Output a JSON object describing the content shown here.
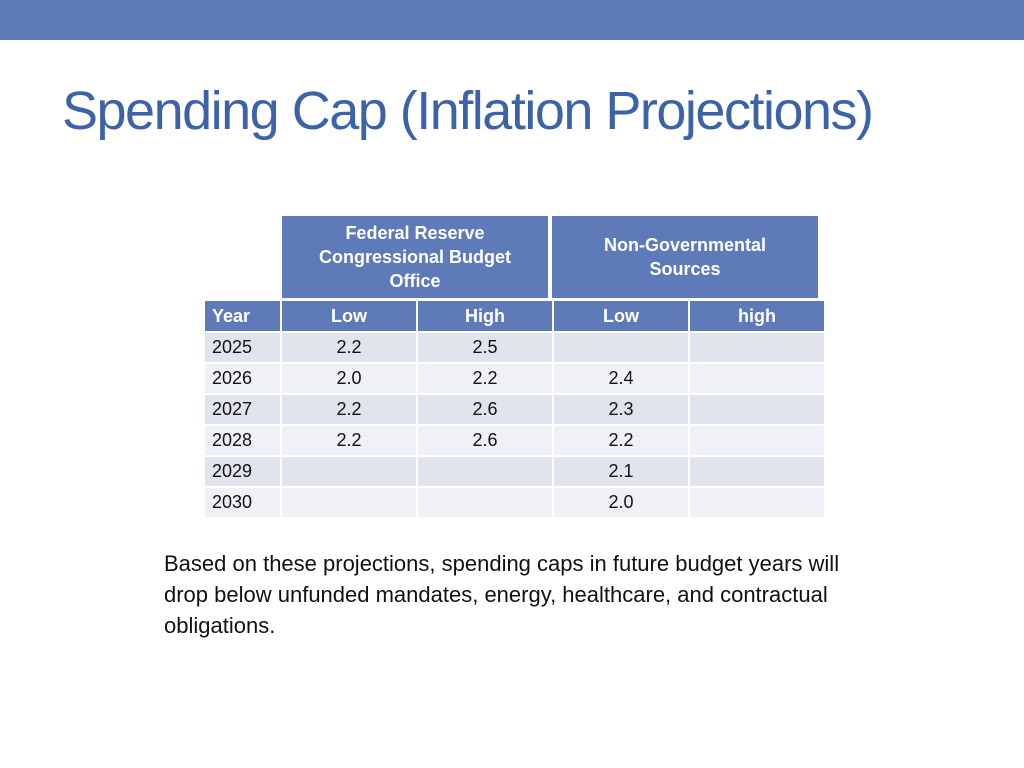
{
  "title": "Spending Cap (Inflation Projections)",
  "group_headers": {
    "fed": [
      "Federal Reserve",
      "Congressional Budget",
      "Office"
    ],
    "ngo": [
      "Non-Governmental",
      "Sources"
    ]
  },
  "table": {
    "columns": [
      "Year",
      "Low",
      "High",
      "Low",
      "high"
    ],
    "rows": [
      [
        "2025",
        "2.2",
        "2.5",
        "",
        ""
      ],
      [
        "2026",
        "2.0",
        "2.2",
        "2.4",
        ""
      ],
      [
        "2027",
        "2.2",
        "2.6",
        "2.3",
        ""
      ],
      [
        "2028",
        "2.2",
        "2.6",
        "2.2",
        ""
      ],
      [
        "2029",
        "",
        "",
        "2.1",
        ""
      ],
      [
        "2030",
        "",
        "",
        "2.0",
        ""
      ]
    ]
  },
  "note": "Based on these projections, spending caps in future budget years will drop below unfunded mandates, energy, healthcare, and contractual obligations.",
  "colors": {
    "accent": "#5f7ab8",
    "title": "#3c63a8",
    "row_odd": "#e1e4ee",
    "row_even": "#f0f1f6"
  }
}
